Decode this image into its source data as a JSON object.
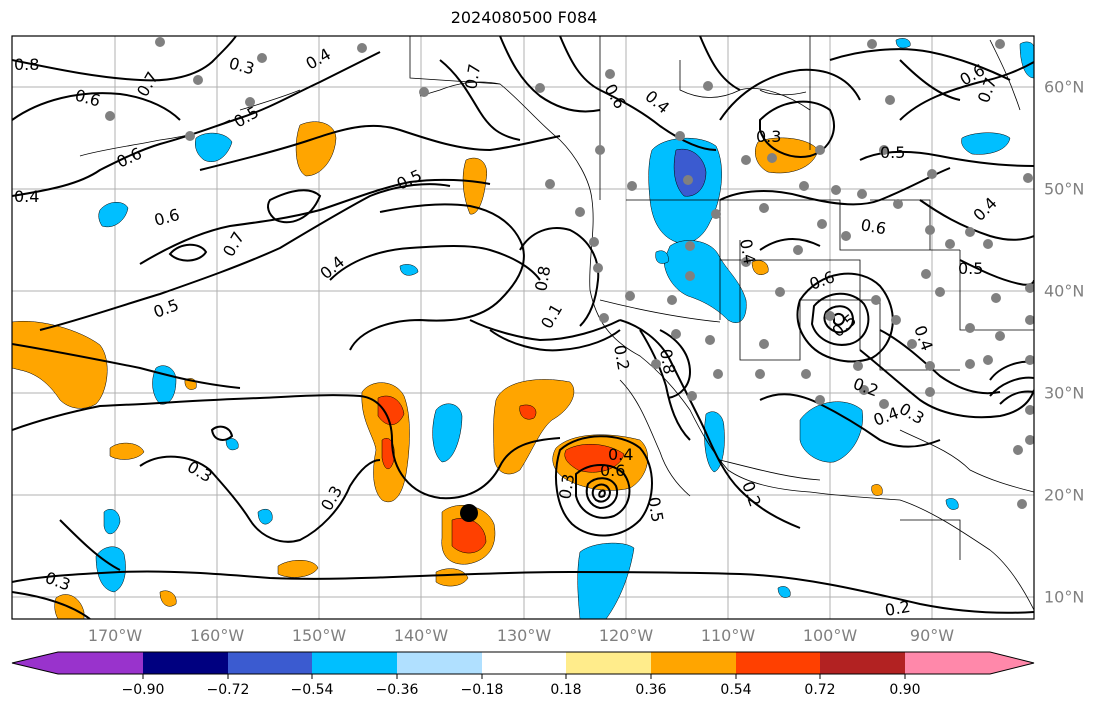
{
  "title": "2024080500 F084",
  "lon_labels": [
    "170°W",
    "160°W",
    "150°W",
    "140°W",
    "130°W",
    "120°W",
    "110°W",
    "100°W",
    "90°W"
  ],
  "lat_labels": [
    "60°N",
    "50°N",
    "40°N",
    "30°N",
    "20°N",
    "10°N"
  ],
  "contour_labels": [
    "0.8",
    "0.6",
    "0.7",
    "0.3",
    "0.4",
    "0.5",
    "0.4",
    "0.6",
    "0.7",
    "0.6",
    "0.5",
    "0.4",
    "0.5",
    "0.3",
    "0.3",
    "0.3",
    "0.4",
    "0.6",
    "0.5",
    "0.3",
    "0.2",
    "0.2",
    "0.7",
    "0.6",
    "0.3",
    "0.5",
    "0.6",
    "0.4",
    "0.6",
    "0.5",
    "0.5",
    "0.2",
    "0.3",
    "0.4",
    "0.6",
    "0.8",
    "0.1",
    "0.2",
    "0.4",
    "0.7",
    "0.4",
    "0.8",
    "0.4"
  ],
  "colorbar": {
    "colors": [
      "#9933cc",
      "#000080",
      "#3b5bd0",
      "#00bfff",
      "#b0e0ff",
      "#ffffff",
      "#ffec8b",
      "#ffa500",
      "#ff4000",
      "#b22222",
      "#ff88aa"
    ],
    "tick_labels": [
      "−0.90",
      "−0.72",
      "−0.54",
      "−0.36",
      "−0.18",
      "0.18",
      "0.36",
      "0.54",
      "0.72",
      "0.90"
    ]
  },
  "marker_color": "#000000",
  "station_color": "#808080"
}
